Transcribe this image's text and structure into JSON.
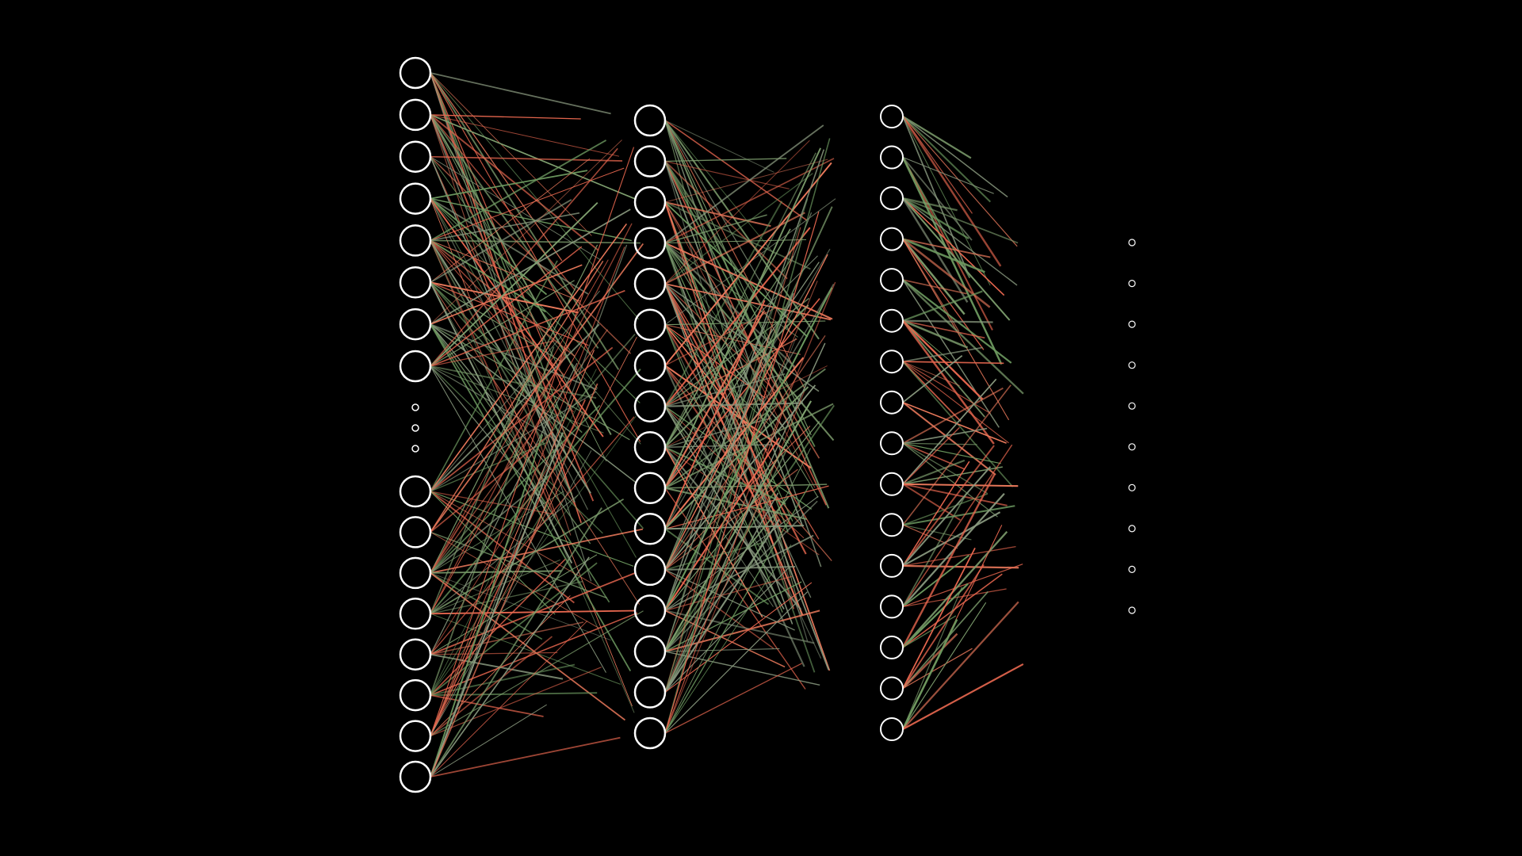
{
  "diagram": {
    "type": "neural-network",
    "background_color": "#000000",
    "neuron_stroke_color": "#ffffff",
    "connection_colors": [
      "#e8674f",
      "#ec7a5c",
      "#6d9a60",
      "#7fa06f",
      "#8a9a80"
    ],
    "layers": [
      {
        "name": "layer-1",
        "visible_neurons_top": 8,
        "ellipsis_dots": 3,
        "visible_neurons_bottom": 8
      },
      {
        "name": "layer-2",
        "visible_neurons": 16
      },
      {
        "name": "layer-3",
        "visible_neurons": 16
      },
      {
        "name": "layer-4",
        "visible_neurons": 10
      }
    ]
  }
}
